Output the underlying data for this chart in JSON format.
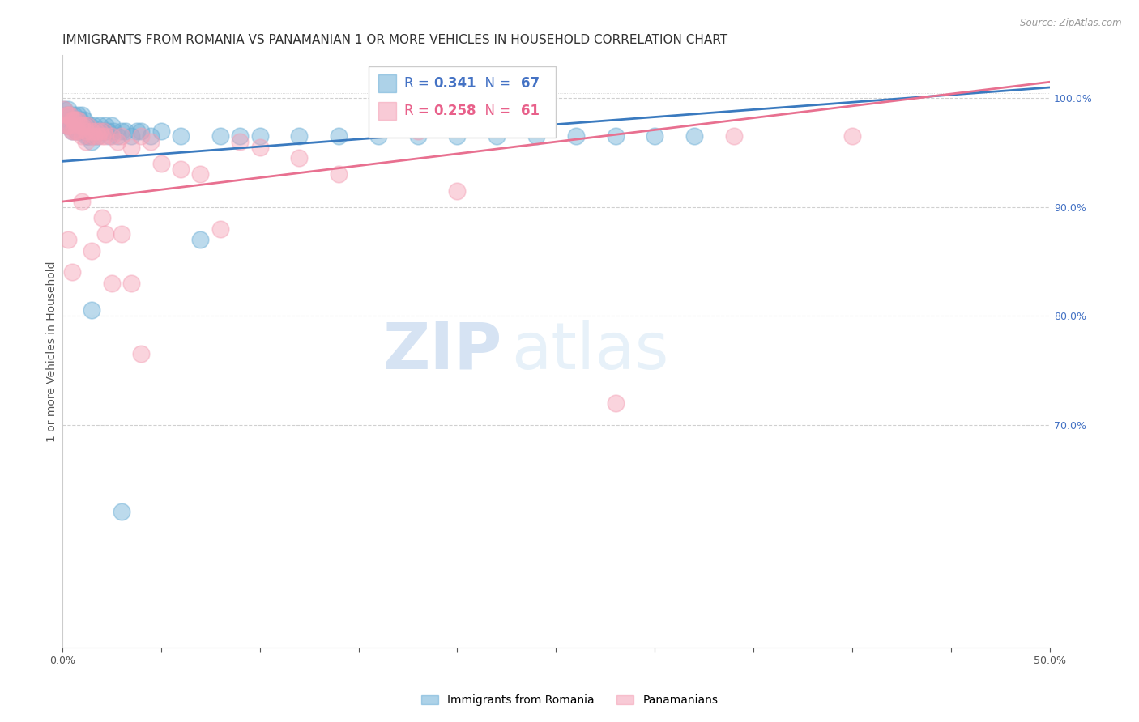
{
  "title": "IMMIGRANTS FROM ROMANIA VS PANAMANIAN 1 OR MORE VEHICLES IN HOUSEHOLD CORRELATION CHART",
  "source": "Source: ZipAtlas.com",
  "ylabel": "1 or more Vehicles in Household",
  "xlim": [
    0.0,
    0.5
  ],
  "ylim": [
    0.495,
    1.04
  ],
  "right_yticks": [
    0.7,
    0.8,
    0.9,
    1.0
  ],
  "right_yticklabels": [
    "70.0%",
    "80.0%",
    "90.0%",
    "100.0%"
  ],
  "series1_color": "#6baed6",
  "series2_color": "#f4a0b5",
  "series1_label": "Immigrants from Romania",
  "series2_label": "Panamanians",
  "legend_r1": "R = 0.341",
  "legend_n1": "N = 67",
  "legend_r2": "R = 0.258",
  "legend_n2": "N = 61",
  "title_fontsize": 11,
  "axis_label_fontsize": 10,
  "tick_fontsize": 9,
  "legend_fontsize": 12,
  "watermark_zip": "ZIP",
  "watermark_atlas": "atlas",
  "blue_scatter_x": [
    0.001,
    0.002,
    0.002,
    0.003,
    0.003,
    0.004,
    0.004,
    0.005,
    0.005,
    0.006,
    0.006,
    0.007,
    0.007,
    0.008,
    0.008,
    0.009,
    0.009,
    0.01,
    0.01,
    0.011,
    0.011,
    0.012,
    0.012,
    0.013,
    0.013,
    0.014,
    0.014,
    0.015,
    0.015,
    0.016,
    0.016,
    0.017,
    0.018,
    0.019,
    0.02,
    0.021,
    0.022,
    0.023,
    0.024,
    0.025,
    0.026,
    0.028,
    0.03,
    0.032,
    0.035,
    0.038,
    0.04,
    0.045,
    0.05,
    0.06,
    0.07,
    0.08,
    0.09,
    0.1,
    0.12,
    0.14,
    0.16,
    0.18,
    0.2,
    0.22,
    0.24,
    0.26,
    0.28,
    0.3,
    0.32,
    0.015,
    0.03
  ],
  "blue_scatter_y": [
    0.99,
    0.985,
    0.975,
    0.98,
    0.99,
    0.985,
    0.975,
    0.98,
    0.97,
    0.985,
    0.975,
    0.98,
    0.97,
    0.985,
    0.97,
    0.98,
    0.97,
    0.985,
    0.975,
    0.98,
    0.97,
    0.975,
    0.965,
    0.975,
    0.965,
    0.975,
    0.965,
    0.97,
    0.96,
    0.975,
    0.965,
    0.97,
    0.965,
    0.975,
    0.97,
    0.97,
    0.975,
    0.97,
    0.965,
    0.975,
    0.97,
    0.965,
    0.97,
    0.97,
    0.965,
    0.97,
    0.97,
    0.965,
    0.97,
    0.965,
    0.87,
    0.965,
    0.965,
    0.965,
    0.965,
    0.965,
    0.965,
    0.965,
    0.965,
    0.965,
    0.965,
    0.965,
    0.965,
    0.965,
    0.965,
    0.805,
    0.62
  ],
  "pink_scatter_x": [
    0.001,
    0.002,
    0.002,
    0.003,
    0.003,
    0.004,
    0.004,
    0.005,
    0.005,
    0.006,
    0.006,
    0.007,
    0.007,
    0.008,
    0.008,
    0.009,
    0.01,
    0.01,
    0.011,
    0.012,
    0.012,
    0.013,
    0.014,
    0.015,
    0.016,
    0.017,
    0.018,
    0.019,
    0.02,
    0.021,
    0.022,
    0.025,
    0.028,
    0.03,
    0.035,
    0.04,
    0.045,
    0.05,
    0.06,
    0.07,
    0.08,
    0.09,
    0.1,
    0.12,
    0.14,
    0.18,
    0.22,
    0.28,
    0.34,
    0.4,
    0.003,
    0.005,
    0.02,
    0.03,
    0.01,
    0.015,
    0.022,
    0.025,
    0.035,
    0.04,
    0.2
  ],
  "pink_scatter_y": [
    0.99,
    0.985,
    0.975,
    0.985,
    0.975,
    0.985,
    0.975,
    0.98,
    0.97,
    0.98,
    0.97,
    0.98,
    0.97,
    0.98,
    0.97,
    0.975,
    0.975,
    0.965,
    0.975,
    0.97,
    0.96,
    0.975,
    0.965,
    0.97,
    0.965,
    0.97,
    0.965,
    0.97,
    0.965,
    0.97,
    0.965,
    0.965,
    0.96,
    0.965,
    0.955,
    0.965,
    0.96,
    0.94,
    0.935,
    0.93,
    0.88,
    0.96,
    0.955,
    0.945,
    0.93,
    0.97,
    1.0,
    0.72,
    0.965,
    0.965,
    0.87,
    0.84,
    0.89,
    0.875,
    0.905,
    0.86,
    0.875,
    0.83,
    0.83,
    0.765,
    0.915
  ],
  "blue_line_x": [
    0.0,
    0.5
  ],
  "blue_line_y": [
    0.942,
    1.01
  ],
  "pink_line_x": [
    0.0,
    0.5
  ],
  "pink_line_y": [
    0.905,
    1.015
  ],
  "background_color": "#ffffff",
  "grid_color": "#d0d0d0",
  "right_axis_color": "#4472c4",
  "blue_text_color": "#4472c4",
  "pink_text_color": "#e8608a",
  "trend_blue": "#3a7abf",
  "trend_pink": "#e87090"
}
